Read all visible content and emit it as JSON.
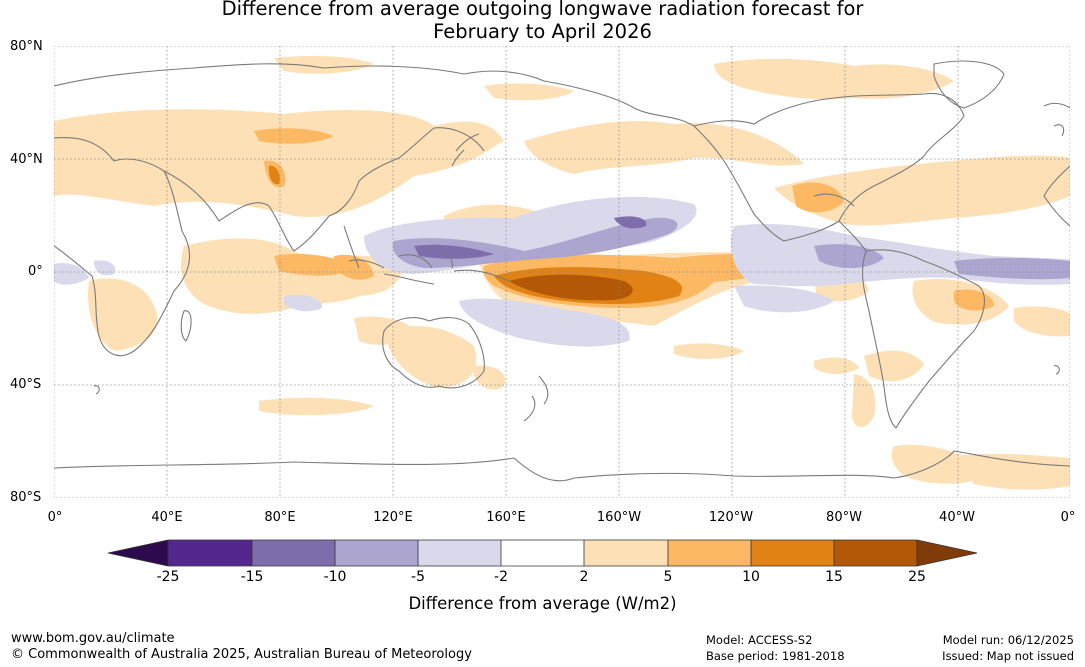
{
  "title": {
    "line1": "Difference from average outgoing longwave radiation forecast for",
    "line2": "February to April 2026"
  },
  "map": {
    "lat_labels": [
      "80°N",
      "40°N",
      "0°",
      "40°S",
      "80°S"
    ],
    "lon_labels": [
      "0°",
      "40°E",
      "80°E",
      "120°E",
      "160°E",
      "160°W",
      "120°W",
      "80°W",
      "40°W",
      "0°"
    ]
  },
  "colorbar": {
    "title": "Difference from average (W/m2)",
    "ticks": [
      "-25",
      "-15",
      "-10",
      "-5",
      "-2",
      "2",
      "5",
      "10",
      "15",
      "25"
    ],
    "colors": {
      "lt_-25": "#2d0a4e",
      "-25_-15": "#54278f",
      "-15_-10": "#7e6dab",
      "-10_-5": "#aba5cf",
      "-5_-2": "#d9d9eb",
      "-2_2": "#ffffff",
      "2_5": "#fde0b5",
      "5_10": "#fdb863",
      "10_15": "#e08214",
      "15_25": "#b35806",
      "gt_25": "#7f3b08"
    }
  },
  "footer": {
    "website": "www.bom.gov.au/climate",
    "copyright": "© Commonwealth of Australia 2025, Australian Bureau of Meteorology",
    "model": "Model: ACCESS-S2",
    "base_period": "Base period: 1981-2018",
    "model_run": "Model run: 06/12/2025",
    "issued": "Issued: Map not issued"
  }
}
